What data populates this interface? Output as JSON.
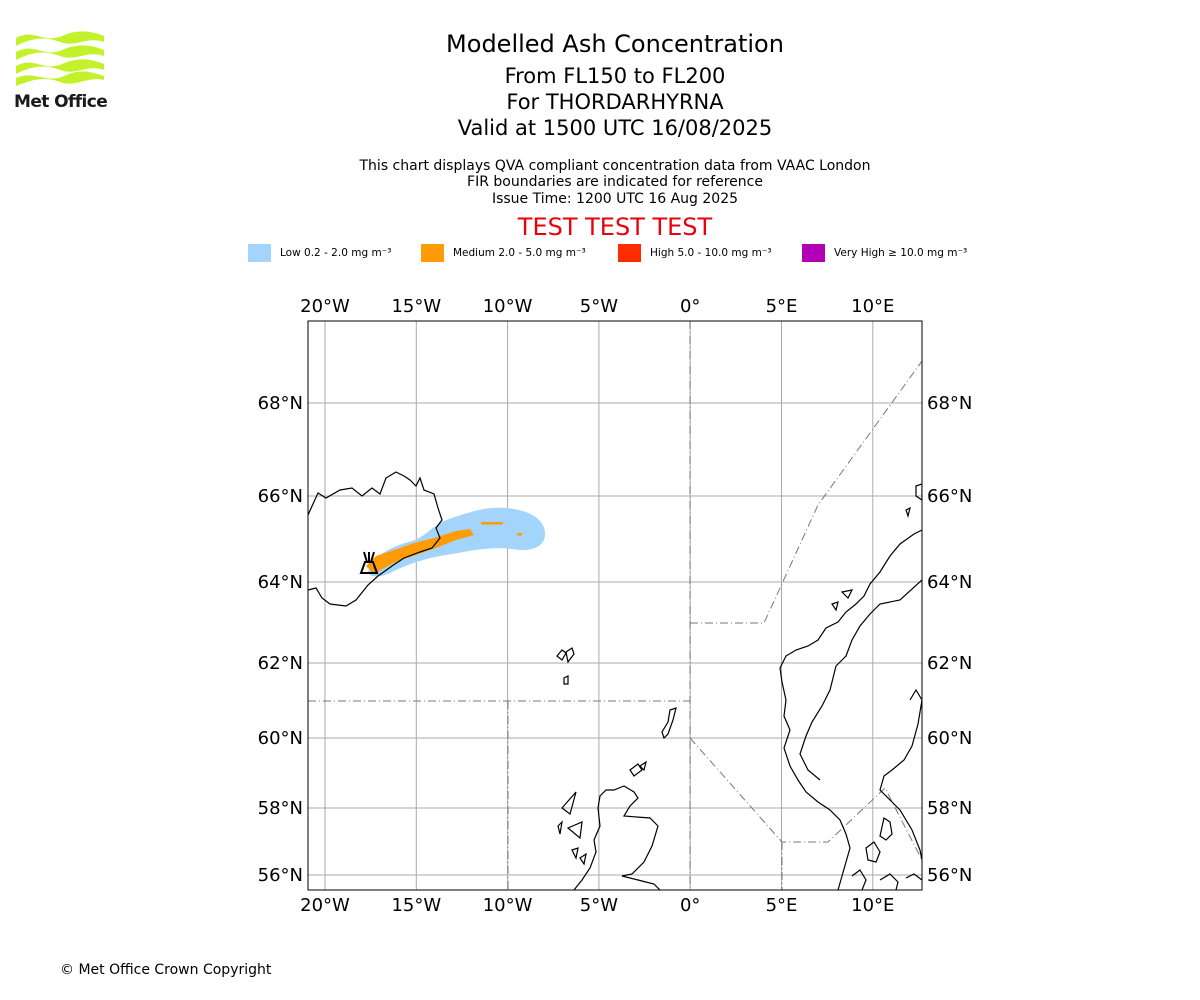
{
  "header": {
    "logo_text": "Met Office",
    "title": "Modelled Ash Concentration",
    "flight_levels": "From FL150 to FL200",
    "volcano": "For THORDARHYRNA",
    "valid_time": "Valid at 1500 UTC 16/08/2025",
    "description": "This chart displays QVA compliant concentration data from VAAC London",
    "fir_note": "FIR boundaries are indicated for reference",
    "issue_time": "Issue Time: 1200 UTC 16 Aug 2025",
    "test_banner": "TEST TEST TEST"
  },
  "legend": [
    {
      "label": "Low 0.2 - 2.0 mg m⁻³",
      "color": "#a3d4fb"
    },
    {
      "label": "Medium 2.0 - 5.0 mg m⁻³",
      "color": "#ff9b05"
    },
    {
      "label": "High 5.0 - 10.0 mg m⁻³",
      "color": "#ff2c00"
    },
    {
      "label": "Very High ≥ 10.0 mg m⁻³",
      "color": "#b100b5"
    }
  ],
  "map": {
    "lon_range": [
      -21,
      12.5
    ],
    "lat_range": [
      55.6,
      69.8
    ],
    "lon_ticks": [
      -20,
      -15,
      -10,
      -5,
      0,
      5,
      10
    ],
    "lon_tick_labels": [
      "20°W",
      "15°W",
      "10°W",
      "5°W",
      "0°",
      "5°E",
      "10°E"
    ],
    "lat_ticks": [
      56,
      58,
      60,
      62,
      64,
      66,
      68
    ],
    "lat_tick_labels": [
      "56°N",
      "58°N",
      "60°N",
      "62°N",
      "64°N",
      "66°N",
      "68°N"
    ],
    "volcano_marker": {
      "lon": -17.6,
      "lat": 64.45,
      "icon": "volcano-icon"
    },
    "grid": true
  },
  "footer": {
    "copyright": "© Met Office Crown Copyright"
  }
}
